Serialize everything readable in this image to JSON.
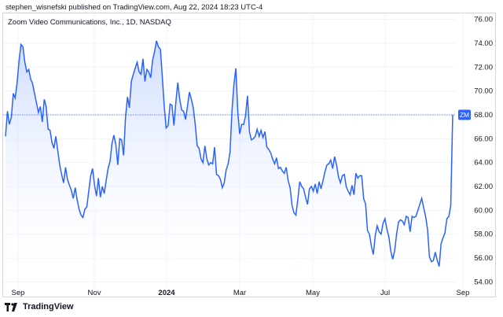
{
  "header": {
    "attribution": "stephen_wisnefski published on TradingView.com, Aug 22, 2024 18:23 UTC-4"
  },
  "footer": {
    "brand": "TradingView",
    "logo_icon": "tradingview-logo-icon"
  },
  "chart_data": {
    "type": "area",
    "title": "Zoom Video Communications, Inc., 1D, NASDAQ",
    "ylim": [
      53.5,
      76.5
    ],
    "y_ticks": [
      "76.00",
      "74.00",
      "72.00",
      "70.00",
      "68.00",
      "66.00",
      "64.00",
      "62.00",
      "60.00",
      "58.00",
      "56.00",
      "54.00"
    ],
    "x_ticks": [
      "Sep",
      "Nov",
      "2024",
      "Mar",
      "May",
      "Jul",
      "Sep"
    ],
    "x_ticks_bold": [
      false,
      false,
      true,
      false,
      false,
      false,
      false
    ],
    "last_value": 68.0,
    "last_label": "ZM",
    "grid": true,
    "colors": {
      "line": "#2962ff",
      "fill": "#dbe5ff",
      "price_line": "#2962ff",
      "grid": "#f0f3fa"
    },
    "series": [
      {
        "values": [
          66.2,
          68.3,
          67.2,
          67.8,
          69.8,
          69.4,
          70.7,
          72.5,
          73.9,
          73.7,
          72.4,
          71.6,
          71.8,
          71.0,
          70.6,
          69.8,
          69.0,
          68.2,
          68.7,
          67.4,
          69.3,
          68.7,
          66.8,
          66.7,
          65.7,
          65.2,
          66.2,
          65.0,
          63.8,
          63.0,
          62.3,
          63.6,
          62.6,
          62.1,
          61.7,
          61.0,
          61.9,
          60.9,
          60.1,
          59.6,
          59.4,
          60.1,
          60.3,
          61.6,
          62.9,
          63.5,
          62.1,
          61.2,
          62.7,
          61.1,
          62.0,
          61.4,
          62.5,
          63.5,
          64.1,
          65.6,
          66.3,
          65.5,
          63.8,
          66.0,
          65.9,
          64.6,
          67.8,
          69.5,
          68.6,
          70.8,
          71.4,
          71.9,
          72.4,
          71.6,
          71.4,
          72.7,
          70.8,
          71.8,
          71.6,
          71.1,
          72.6,
          73.3,
          74.2,
          73.7,
          73.5,
          71.2,
          68.7,
          66.9,
          67.1,
          68.9,
          68.8,
          67.1,
          69.1,
          70.7,
          69.3,
          68.4,
          68.3,
          67.6,
          68.7,
          69.9,
          69.3,
          68.6,
          67.2,
          65.4,
          65.2,
          64.3,
          64.0,
          65.4,
          64.3,
          63.8,
          64.0,
          63.9,
          65.3,
          63.0,
          62.9,
          62.6,
          61.9,
          62.3,
          63.4,
          63.9,
          64.9,
          68.4,
          70.6,
          71.9,
          68.2,
          66.4,
          67.2,
          67.2,
          67.9,
          69.6,
          66.6,
          65.9,
          66.0,
          66.2,
          66.8,
          66.2,
          66.7,
          66.1,
          66.6,
          65.3,
          65.1,
          64.8,
          64.3,
          63.9,
          64.4,
          63.5,
          63.6,
          63.3,
          63.1,
          63.6,
          62.5,
          61.9,
          60.4,
          59.8,
          59.6,
          60.9,
          62.4,
          62.0,
          61.8,
          61.1,
          60.5,
          61.8,
          62.0,
          61.6,
          62.2,
          61.4,
          62.4,
          61.8,
          62.5,
          63.2,
          63.8,
          63.9,
          64.2,
          63.5,
          64.5,
          63.8,
          62.8,
          62.3,
          62.9,
          63.0,
          62.0,
          61.6,
          61.3,
          62.1,
          61.3,
          63.1,
          62.7,
          62.9,
          62.9,
          61.0,
          60.5,
          58.3,
          58.0,
          57.0,
          56.3,
          57.9,
          58.7,
          58.2,
          58.0,
          58.9,
          59.3,
          58.4,
          57.8,
          56.6,
          55.9,
          56.6,
          58.0,
          59.0,
          59.2,
          59.1,
          58.8,
          59.5,
          59.4,
          58.2,
          59.5,
          59.4,
          59.5,
          60.0,
          60.5,
          61.0,
          60.2,
          59.5,
          58.4,
          56.1,
          55.7,
          55.8,
          56.5,
          55.8,
          55.3,
          57.2,
          57.7,
          58.1,
          59.3,
          59.5,
          60.4,
          68.0
        ]
      }
    ]
  }
}
